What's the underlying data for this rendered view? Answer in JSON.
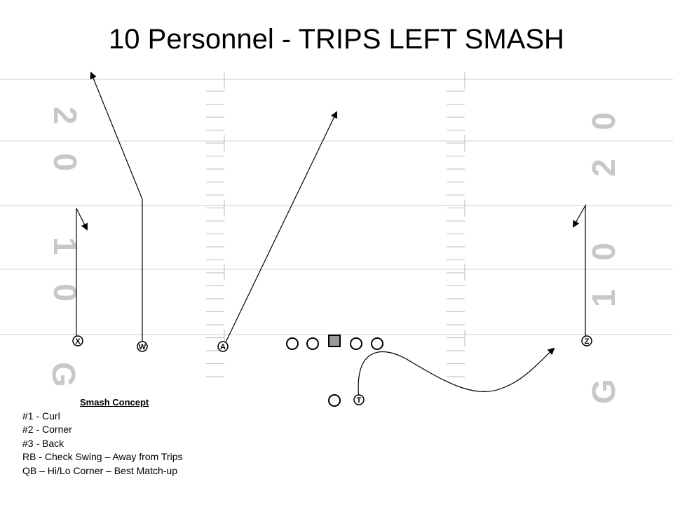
{
  "title": "10 Personnel - TRIPS LEFT SMASH",
  "field": {
    "yard_numbers_left": [
      "2 0",
      "1 0",
      "G"
    ],
    "yard_numbers_right": [
      "2 0",
      "1 0",
      "G"
    ]
  },
  "players": {
    "x": "X",
    "w": "W",
    "a": "A",
    "z": "Z",
    "t": "T"
  },
  "notes": {
    "heading": "Smash Concept",
    "lines": [
      "#1 - Curl",
      "#2 - Corner",
      "#3 - Back",
      "RB - Check Swing – Away from Trips",
      "QB – Hi/Lo Corner – Best Match-up"
    ]
  },
  "colors": {
    "yard_line": "#cccccc",
    "yard_number": "#c8c8c8",
    "center_fill": "#9a9a9a",
    "route": "#000000"
  }
}
